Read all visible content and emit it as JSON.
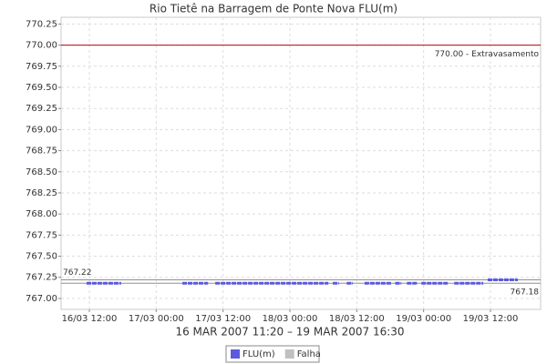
{
  "chart_data": {
    "type": "line",
    "title": "Rio Tietê na Barragem de Ponte Nova FLU(m)",
    "x_label": "16 MAR 2007 11:20 – 19 MAR 2007 16:30",
    "x": [
      11.5,
      17.7,
      23,
      28.7,
      33.3,
      34,
      34.6,
      54.9,
      55.3,
      55.7,
      56.8,
      57.5,
      58.2,
      59.3,
      60,
      61.4,
      66.3,
      66.6,
      66.9,
      68,
      68.5,
      69,
      70.9,
      71.2,
      71.6,
      76.5,
      77,
      77.5,
      82.7,
      83.1,
      83.5,
      88.9
    ],
    "series": [
      {
        "name": "FLU(m)",
        "color": "#5a5ae0",
        "values": [
          767.18,
          767.18,
          null,
          767.18,
          767.18,
          null,
          767.18,
          767.18,
          null,
          767.18,
          767.18,
          null,
          767.18,
          767.18,
          null,
          767.18,
          767.18,
          null,
          767.18,
          767.18,
          null,
          767.18,
          767.18,
          null,
          767.18,
          767.18,
          null,
          767.18,
          767.18,
          null,
          767.22,
          767.22
        ]
      },
      {
        "name": "Falha",
        "color": "#c0c0c0",
        "values": [
          null,
          null,
          null,
          null,
          null,
          null,
          null,
          null,
          null,
          null,
          null,
          null,
          null,
          null,
          null,
          null,
          null,
          null,
          null,
          null,
          null,
          null,
          null,
          null,
          null,
          null,
          null,
          null,
          null,
          null,
          null,
          null
        ]
      }
    ],
    "markers": [
      {
        "value": 770,
        "label": "770.00 - Extravasamento",
        "color": "#c00000"
      },
      {
        "value": 767.22,
        "label": "767.22",
        "color": "#909090"
      },
      {
        "value": 767.18,
        "label": "767.18",
        "color": "#909090"
      }
    ],
    "xlim": [
      6.93,
      93.0
    ],
    "xticks": [
      {
        "value": 12,
        "label": "16/03 12:00"
      },
      {
        "value": 24,
        "label": "17/03 00:00"
      },
      {
        "value": 36,
        "label": "17/03 12:00"
      },
      {
        "value": 48,
        "label": "18/03 00:00"
      },
      {
        "value": 60,
        "label": "18/03 12:00"
      },
      {
        "value": 72,
        "label": "19/03 00:00"
      },
      {
        "value": 84,
        "label": "19/03 12:00"
      }
    ],
    "ylim": [
      766.87,
      770.33
    ],
    "yticks": [
      {
        "value": 767,
        "label": "767.00"
      },
      767.25,
      {
        "value": 767.5,
        "label": "767.50"
      },
      767.75,
      {
        "value": 768,
        "label": "768.00"
      },
      768.25,
      {
        "value": 768.5,
        "label": "768.50"
      },
      768.75,
      {
        "value": 769,
        "label": "769.00"
      },
      769.25,
      {
        "value": 769.5,
        "label": "769.50"
      },
      769.75,
      {
        "value": 770,
        "label": "770.00"
      },
      770.25
    ],
    "grid": true
  }
}
